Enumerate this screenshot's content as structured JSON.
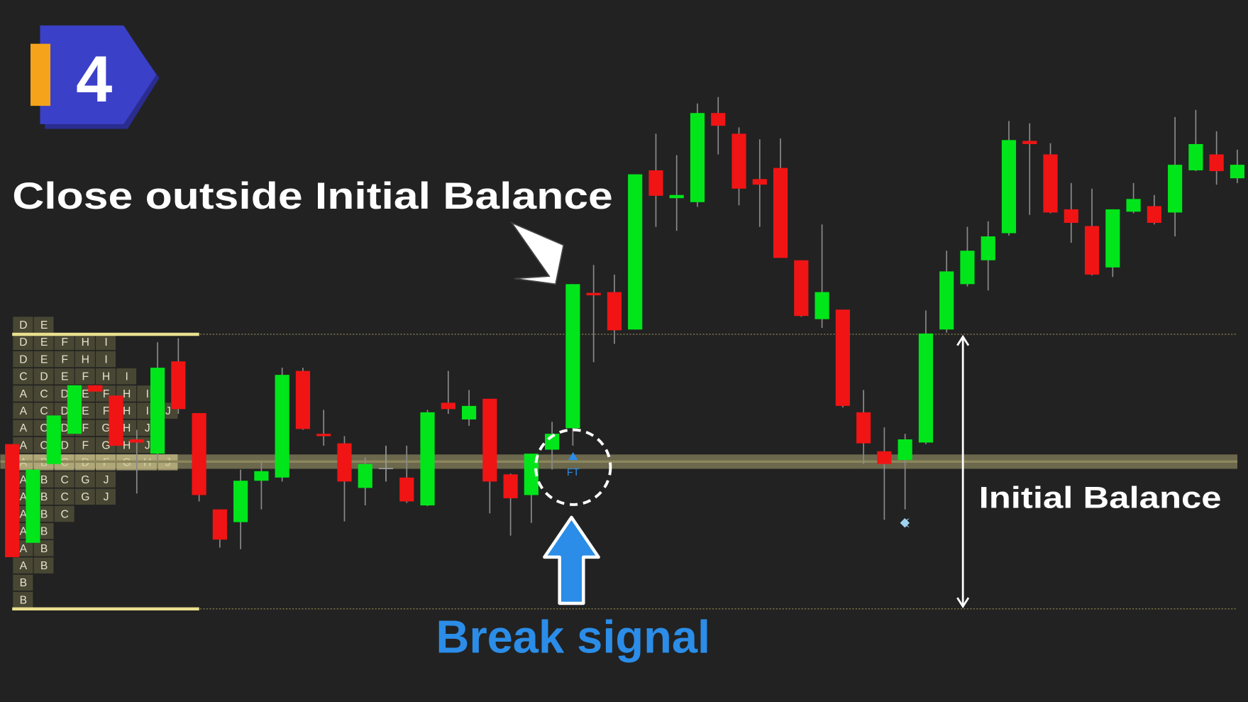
{
  "badge": "4",
  "chart_data": {
    "type": "candlestick",
    "title": "Close outside Initial Balance",
    "signal_text": "Break signal",
    "range_text": "Initial Balance",
    "signal_marker": "FT",
    "ylim": [
      0,
      882
    ],
    "up_color": "#00e61a",
    "down_color": "#f01414",
    "doji_color": "#9a9a9a",
    "ib_high": 462,
    "ib_low": 117,
    "poc": 302,
    "open": [
      324,
      200,
      299,
      337,
      398,
      385,
      330,
      312,
      428,
      363,
      242,
      226,
      278,
      282,
      416,
      337,
      325,
      269,
      294,
      282,
      247,
      376,
      355,
      381,
      286,
      260,
      317,
      344,
      514,
      515,
      468,
      668,
      633,
      628,
      740,
      714,
      657,
      671,
      555,
      481,
      493,
      364,
      315,
      304,
      326,
      468,
      525,
      555,
      589,
      705,
      688,
      619,
      598,
      546,
      616,
      623,
      615,
      668,
      688,
      658
    ],
    "high": [
      324,
      292,
      360,
      398,
      398,
      385,
      342,
      452,
      457,
      363,
      242,
      292,
      302,
      420,
      420,
      367,
      334,
      307,
      322,
      322,
      367,
      416,
      392,
      381,
      287,
      312,
      352,
      525,
      549,
      537,
      663,
      714,
      687,
      752,
      760,
      722,
      707,
      708,
      555,
      600,
      493,
      392,
      345,
      337,
      492,
      567,
      597,
      604,
      730,
      727,
      702,
      652,
      645,
      619,
      652,
      637,
      735,
      744,
      717,
      694
    ],
    "low": [
      182,
      200,
      299,
      337,
      390,
      322,
      262,
      302,
      362,
      252,
      194,
      192,
      242,
      277,
      342,
      322,
      227,
      247,
      277,
      250,
      246,
      362,
      347,
      237,
      209,
      225,
      292,
      322,
      427,
      450,
      468,
      597,
      592,
      622,
      688,
      624,
      597,
      558,
      484,
      470,
      370,
      299,
      229,
      242,
      324,
      464,
      522,
      517,
      586,
      612,
      614,
      577,
      536,
      534,
      614,
      600,
      585,
      667,
      650,
      652
    ],
    "close": [
      182,
      292,
      360,
      398,
      390,
      322,
      326,
      420,
      368,
      260,
      204,
      278,
      290,
      411,
      343,
      334,
      277,
      299,
      294,
      252,
      364,
      368,
      372,
      277,
      256,
      312,
      337,
      525,
      511,
      467,
      663,
      636,
      637,
      740,
      724,
      645,
      650,
      558,
      485,
      515,
      372,
      325,
      299,
      330,
      463,
      541,
      567,
      585,
      706,
      701,
      615,
      602,
      537,
      619,
      632,
      602,
      675,
      701,
      667,
      675
    ]
  },
  "profile": {
    "poc_row": 8,
    "rows": [
      [
        "D",
        "E"
      ],
      [
        "D",
        "E",
        "F",
        "H",
        "I"
      ],
      [
        "D",
        "E",
        "F",
        "H",
        "I"
      ],
      [
        "C",
        "D",
        "E",
        "F",
        "H",
        "I"
      ],
      [
        "A",
        "C",
        "D",
        "E",
        "F",
        "H",
        "I"
      ],
      [
        "A",
        "C",
        "D",
        "E",
        "F",
        "H",
        "I",
        "J"
      ],
      [
        "A",
        "C",
        "D",
        "F",
        "G",
        "H",
        "J"
      ],
      [
        "A",
        "C",
        "D",
        "F",
        "G",
        "H",
        "J"
      ],
      [
        "A",
        "B",
        "C",
        "D",
        "F",
        "G",
        "H",
        "J"
      ],
      [
        "A",
        "B",
        "C",
        "G",
        "J"
      ],
      [
        "A",
        "B",
        "C",
        "G",
        "J"
      ],
      [
        "A",
        "B",
        "C"
      ],
      [
        "A",
        "B"
      ],
      [
        "A",
        "B"
      ],
      [
        "A",
        "B"
      ],
      [
        "B"
      ],
      [
        "B"
      ]
    ]
  }
}
